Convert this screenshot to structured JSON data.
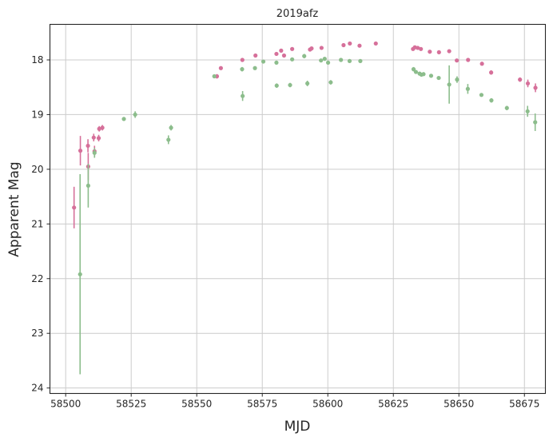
{
  "chart_data": {
    "type": "scatter",
    "title": "2019afz",
    "xlabel": "MJD",
    "ylabel": "Apparent Mag",
    "xlim": [
      58494,
      58683
    ],
    "ylim": [
      24.1,
      17.35
    ],
    "y_inverted": true,
    "grid": true,
    "x_ticks": [
      58500,
      58525,
      58550,
      58575,
      58600,
      58625,
      58650,
      58675
    ],
    "y_ticks": [
      18,
      19,
      20,
      21,
      22,
      23,
      24
    ],
    "x_tick_labels": [
      "58500",
      "58525",
      "58550",
      "58575",
      "58600",
      "58625",
      "58650",
      "58675"
    ],
    "y_tick_labels": [
      "18",
      "19",
      "20",
      "21",
      "22",
      "23",
      "24"
    ],
    "series": [
      {
        "color": "#d6709a",
        "points": [
          {
            "x": 58503.2,
            "y": 20.7,
            "err": 0.38
          },
          {
            "x": 58505.6,
            "y": 19.66,
            "err": 0.27
          },
          {
            "x": 58508.5,
            "y": 19.57,
            "err": 0.12
          },
          {
            "x": 58508.6,
            "y": 19.95,
            "err": 0.25
          },
          {
            "x": 58510.7,
            "y": 19.42,
            "err": 0.07
          },
          {
            "x": 58511.0,
            "y": 19.67,
            "err": 0.1
          },
          {
            "x": 58512.6,
            "y": 19.43,
            "err": 0.06
          },
          {
            "x": 58512.8,
            "y": 19.26,
            "err": 0.05
          },
          {
            "x": 58514.0,
            "y": 19.24,
            "err": 0.05
          },
          {
            "x": 58557.7,
            "y": 18.3,
            "err": 0.04
          },
          {
            "x": 58559.2,
            "y": 18.15,
            "err": 0.03
          },
          {
            "x": 58567.4,
            "y": 18.0,
            "err": 0.02
          },
          {
            "x": 58572.4,
            "y": 17.92,
            "err": 0.02
          },
          {
            "x": 58580.4,
            "y": 17.89,
            "err": 0.02
          },
          {
            "x": 58582.2,
            "y": 17.83,
            "err": 0.02
          },
          {
            "x": 58583.3,
            "y": 17.92,
            "err": 0.02
          },
          {
            "x": 58586.4,
            "y": 17.8,
            "err": 0.02
          },
          {
            "x": 58593.2,
            "y": 17.81,
            "err": 0.02
          },
          {
            "x": 58593.8,
            "y": 17.79,
            "err": 0.02
          },
          {
            "x": 58597.6,
            "y": 17.78,
            "err": 0.02
          },
          {
            "x": 58606.0,
            "y": 17.73,
            "err": 0.02
          },
          {
            "x": 58608.4,
            "y": 17.7,
            "err": 0.02
          },
          {
            "x": 58612.1,
            "y": 17.74,
            "err": 0.02
          },
          {
            "x": 58618.3,
            "y": 17.7,
            "err": 0.02
          },
          {
            "x": 58632.5,
            "y": 17.8,
            "err": 0.02
          },
          {
            "x": 58633.2,
            "y": 17.77,
            "err": 0.02
          },
          {
            "x": 58634.3,
            "y": 17.78,
            "err": 0.02
          },
          {
            "x": 58635.5,
            "y": 17.8,
            "err": 0.02
          },
          {
            "x": 58638.9,
            "y": 17.85,
            "err": 0.02
          },
          {
            "x": 58642.4,
            "y": 17.86,
            "err": 0.02
          },
          {
            "x": 58646.3,
            "y": 17.84,
            "err": 0.02
          },
          {
            "x": 58649.2,
            "y": 18.01,
            "err": 0.02
          },
          {
            "x": 58653.5,
            "y": 18.0,
            "err": 0.02
          },
          {
            "x": 58658.8,
            "y": 18.07,
            "err": 0.02
          },
          {
            "x": 58662.3,
            "y": 18.23,
            "err": 0.04
          },
          {
            "x": 58673.3,
            "y": 18.36,
            "err": 0.04
          },
          {
            "x": 58676.3,
            "y": 18.43,
            "err": 0.07
          },
          {
            "x": 58679.2,
            "y": 18.51,
            "err": 0.08
          }
        ]
      },
      {
        "color": "#8cbd8c",
        "points": [
          {
            "x": 58505.5,
            "y": 21.92,
            "err": 1.83
          },
          {
            "x": 58508.6,
            "y": 20.3,
            "err": 0.4
          },
          {
            "x": 58511.0,
            "y": 19.7,
            "err": 0.09
          },
          {
            "x": 58522.2,
            "y": 19.08,
            "err": 0.03
          },
          {
            "x": 58526.5,
            "y": 19.0,
            "err": 0.06
          },
          {
            "x": 58539.2,
            "y": 19.46,
            "err": 0.08
          },
          {
            "x": 58540.2,
            "y": 19.24,
            "err": 0.05
          },
          {
            "x": 58556.7,
            "y": 18.3,
            "err": 0.03
          },
          {
            "x": 58567.3,
            "y": 18.17,
            "err": 0.04
          },
          {
            "x": 58567.5,
            "y": 18.66,
            "err": 0.09
          },
          {
            "x": 58572.2,
            "y": 18.15,
            "err": 0.03
          },
          {
            "x": 58575.4,
            "y": 18.03,
            "err": 0.03
          },
          {
            "x": 58580.4,
            "y": 18.05,
            "err": 0.03
          },
          {
            "x": 58580.5,
            "y": 18.47,
            "err": 0.04
          },
          {
            "x": 58585.6,
            "y": 18.46,
            "err": 0.04
          },
          {
            "x": 58586.4,
            "y": 17.99,
            "err": 0.03
          },
          {
            "x": 58591.0,
            "y": 17.93,
            "err": 0.04
          },
          {
            "x": 58592.2,
            "y": 18.43,
            "err": 0.05
          },
          {
            "x": 58597.4,
            "y": 18.01,
            "err": 0.03
          },
          {
            "x": 58598.8,
            "y": 17.98,
            "err": 0.03
          },
          {
            "x": 58600.1,
            "y": 18.05,
            "err": 0.03
          },
          {
            "x": 58601.1,
            "y": 18.41,
            "err": 0.04
          },
          {
            "x": 58605.0,
            "y": 18.0,
            "err": 0.03
          },
          {
            "x": 58608.3,
            "y": 18.02,
            "err": 0.03
          },
          {
            "x": 58612.4,
            "y": 18.02,
            "err": 0.03
          },
          {
            "x": 58632.7,
            "y": 18.17,
            "err": 0.04
          },
          {
            "x": 58633.6,
            "y": 18.22,
            "err": 0.03
          },
          {
            "x": 58635.0,
            "y": 18.25,
            "err": 0.03
          },
          {
            "x": 58635.7,
            "y": 18.27,
            "err": 0.03
          },
          {
            "x": 58636.5,
            "y": 18.26,
            "err": 0.03
          },
          {
            "x": 58639.4,
            "y": 18.29,
            "err": 0.03
          },
          {
            "x": 58642.3,
            "y": 18.33,
            "err": 0.03
          },
          {
            "x": 58646.3,
            "y": 18.45,
            "err": 0.35
          },
          {
            "x": 58649.3,
            "y": 18.36,
            "err": 0.06
          },
          {
            "x": 58653.4,
            "y": 18.53,
            "err": 0.09
          },
          {
            "x": 58658.6,
            "y": 18.64,
            "err": 0.03
          },
          {
            "x": 58662.4,
            "y": 18.74,
            "err": 0.04
          },
          {
            "x": 58668.3,
            "y": 18.88,
            "err": 0.04
          },
          {
            "x": 58676.2,
            "y": 18.94,
            "err": 0.1
          },
          {
            "x": 58679.1,
            "y": 19.14,
            "err": 0.16
          }
        ]
      }
    ]
  }
}
